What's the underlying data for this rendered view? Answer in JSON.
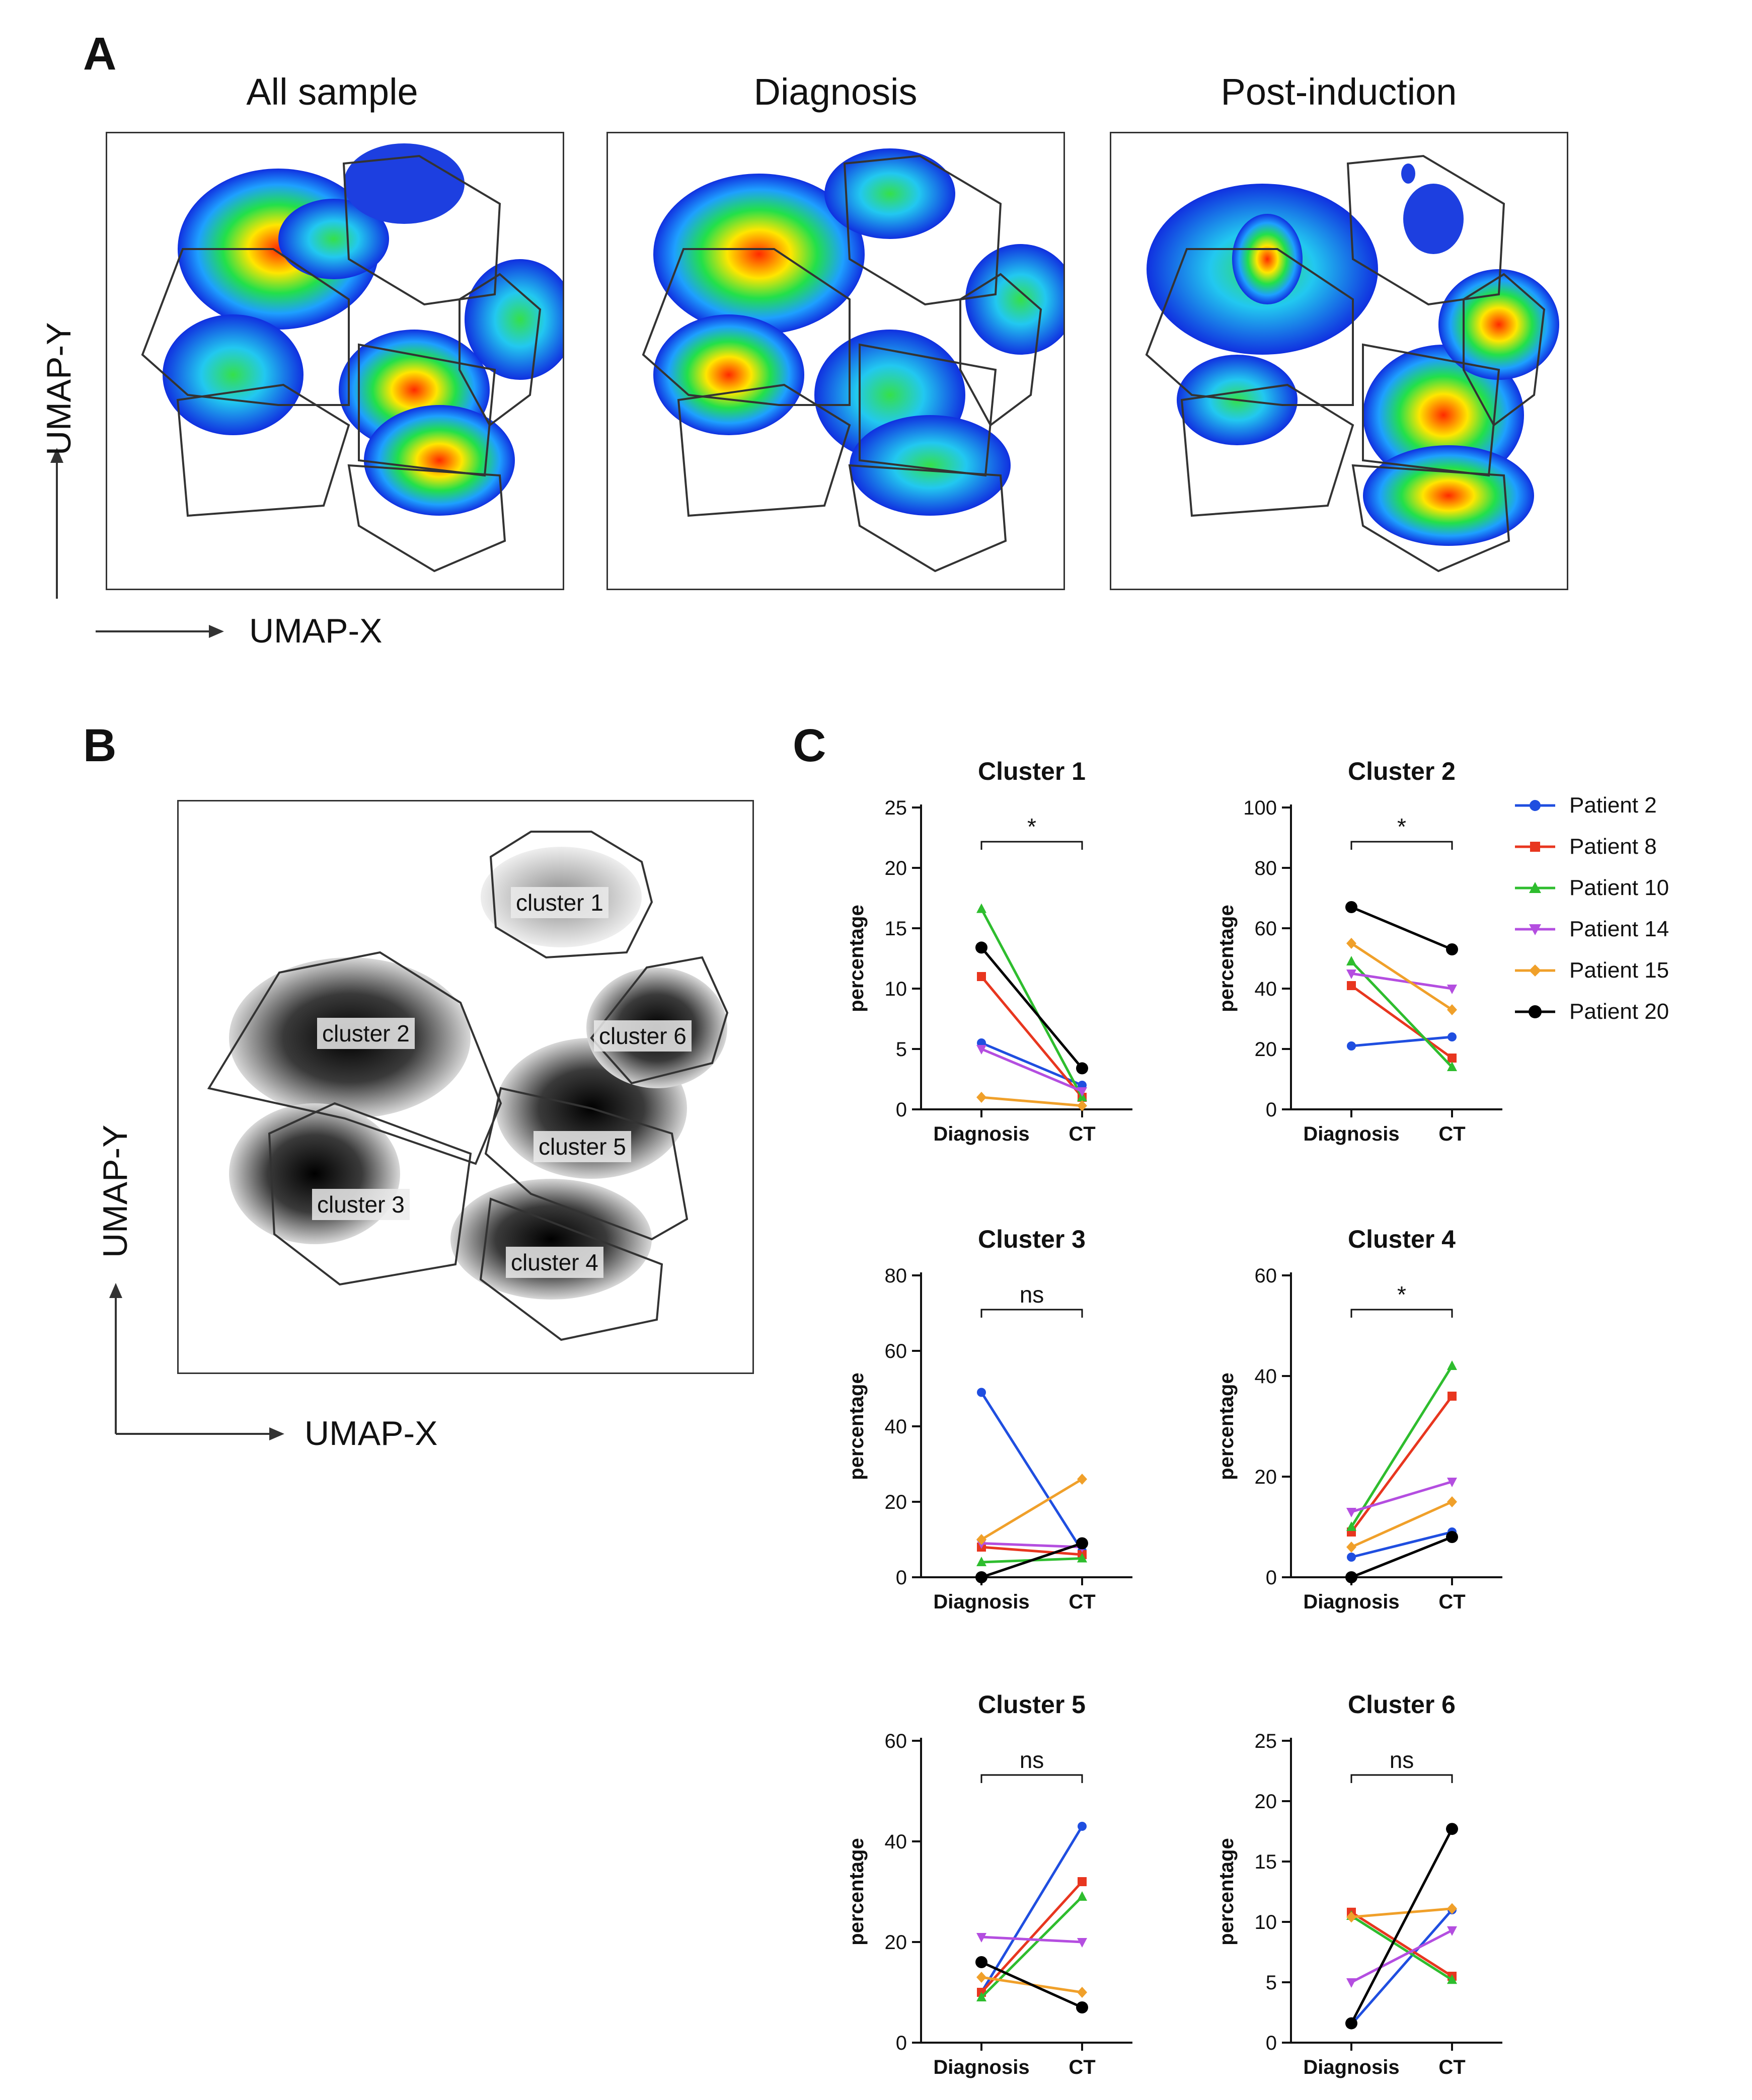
{
  "panels": {
    "a_label": "A",
    "b_label": "B",
    "c_label": "C"
  },
  "panel_a": {
    "titles": [
      "All sample",
      "Diagnosis",
      "Post-induction"
    ],
    "y_axis": "UMAP-Y",
    "x_axis": "UMAP-X"
  },
  "panel_b": {
    "y_axis": "UMAP-Y",
    "x_axis": "UMAP-X",
    "cluster_labels": [
      "cluster 1",
      "cluster 2",
      "cluster 3",
      "cluster 4",
      "cluster 5",
      "cluster 6"
    ]
  },
  "colors": {
    "Patient 2": "#1f4ee0",
    "Patient 8": "#e8361f",
    "Patient 10": "#2ebd2e",
    "Patient 14": "#b44ee0",
    "Patient 15": "#f0a02a",
    "Patient 20": "#000000"
  },
  "chart_data": [
    {
      "type": "line",
      "title": "Cluster 1",
      "ylabel": "percentage",
      "categories": [
        "Diagnosis",
        "CT"
      ],
      "ylim": [
        0,
        25
      ],
      "yticks": [
        0,
        5,
        10,
        15,
        20,
        25
      ],
      "significance": "*",
      "series": [
        {
          "name": "Patient 2",
          "values": [
            5.5,
            2.0
          ]
        },
        {
          "name": "Patient 8",
          "values": [
            11.0,
            1.0
          ]
        },
        {
          "name": "Patient 10",
          "values": [
            16.6,
            1.0
          ]
        },
        {
          "name": "Patient 14",
          "values": [
            5.0,
            1.5
          ]
        },
        {
          "name": "Patient 15",
          "values": [
            1.0,
            0.3
          ]
        },
        {
          "name": "Patient 20",
          "values": [
            13.4,
            3.4
          ]
        }
      ]
    },
    {
      "type": "line",
      "title": "Cluster 2",
      "ylabel": "percentage",
      "categories": [
        "Diagnosis",
        "CT"
      ],
      "ylim": [
        0,
        100
      ],
      "yticks": [
        0,
        20,
        40,
        60,
        80,
        100
      ],
      "significance": "*",
      "series": [
        {
          "name": "Patient 2",
          "values": [
            21,
            24
          ]
        },
        {
          "name": "Patient 8",
          "values": [
            41,
            17
          ]
        },
        {
          "name": "Patient 10",
          "values": [
            49,
            14
          ]
        },
        {
          "name": "Patient 14",
          "values": [
            45,
            40
          ]
        },
        {
          "name": "Patient 15",
          "values": [
            55,
            33
          ]
        },
        {
          "name": "Patient 20",
          "values": [
            67,
            53
          ]
        }
      ]
    },
    {
      "type": "line",
      "title": "Cluster 3",
      "ylabel": "percentage",
      "categories": [
        "Diagnosis",
        "CT"
      ],
      "ylim": [
        0,
        80
      ],
      "yticks": [
        0,
        20,
        40,
        60,
        80
      ],
      "significance": "ns",
      "series": [
        {
          "name": "Patient 2",
          "values": [
            49,
            7
          ]
        },
        {
          "name": "Patient 8",
          "values": [
            8,
            6
          ]
        },
        {
          "name": "Patient 10",
          "values": [
            4,
            5
          ]
        },
        {
          "name": "Patient 14",
          "values": [
            9,
            8
          ]
        },
        {
          "name": "Patient 15",
          "values": [
            10,
            26
          ]
        },
        {
          "name": "Patient 20",
          "values": [
            0,
            9
          ]
        }
      ]
    },
    {
      "type": "line",
      "title": "Cluster 4",
      "ylabel": "percentage",
      "categories": [
        "Diagnosis",
        "CT"
      ],
      "ylim": [
        0,
        60
      ],
      "yticks": [
        0,
        20,
        40,
        60
      ],
      "significance": "*",
      "series": [
        {
          "name": "Patient 2",
          "values": [
            4,
            9
          ]
        },
        {
          "name": "Patient 8",
          "values": [
            9,
            36
          ]
        },
        {
          "name": "Patient 10",
          "values": [
            10,
            42
          ]
        },
        {
          "name": "Patient 14",
          "values": [
            13,
            19
          ]
        },
        {
          "name": "Patient 15",
          "values": [
            6,
            15
          ]
        },
        {
          "name": "Patient 20",
          "values": [
            0,
            8
          ]
        }
      ]
    },
    {
      "type": "line",
      "title": "Cluster 5",
      "ylabel": "percentage",
      "categories": [
        "Diagnosis",
        "CT"
      ],
      "ylim": [
        0,
        60
      ],
      "yticks": [
        0,
        20,
        40,
        60
      ],
      "significance": "ns",
      "series": [
        {
          "name": "Patient 2",
          "values": [
            10,
            43
          ]
        },
        {
          "name": "Patient 8",
          "values": [
            10,
            32
          ]
        },
        {
          "name": "Patient 10",
          "values": [
            9,
            29
          ]
        },
        {
          "name": "Patient 14",
          "values": [
            21,
            20
          ]
        },
        {
          "name": "Patient 15",
          "values": [
            13,
            10
          ]
        },
        {
          "name": "Patient 20",
          "values": [
            16,
            7
          ]
        }
      ]
    },
    {
      "type": "line",
      "title": "Cluster 6",
      "ylabel": "percentage",
      "categories": [
        "Diagnosis",
        "CT"
      ],
      "ylim": [
        0,
        25
      ],
      "yticks": [
        0,
        5,
        10,
        15,
        20,
        25
      ],
      "significance": "ns",
      "series": [
        {
          "name": "Patient 2",
          "values": [
            1.5,
            11.0
          ]
        },
        {
          "name": "Patient 8",
          "values": [
            10.8,
            5.5
          ]
        },
        {
          "name": "Patient 10",
          "values": [
            10.5,
            5.2
          ]
        },
        {
          "name": "Patient 14",
          "values": [
            5.0,
            9.3
          ]
        },
        {
          "name": "Patient 15",
          "values": [
            10.4,
            11.1
          ]
        },
        {
          "name": "Patient 20",
          "values": [
            1.6,
            17.7
          ]
        }
      ]
    }
  ],
  "legend": [
    "Patient 2",
    "Patient 8",
    "Patient 10",
    "Patient 14",
    "Patient 15",
    "Patient 20"
  ]
}
